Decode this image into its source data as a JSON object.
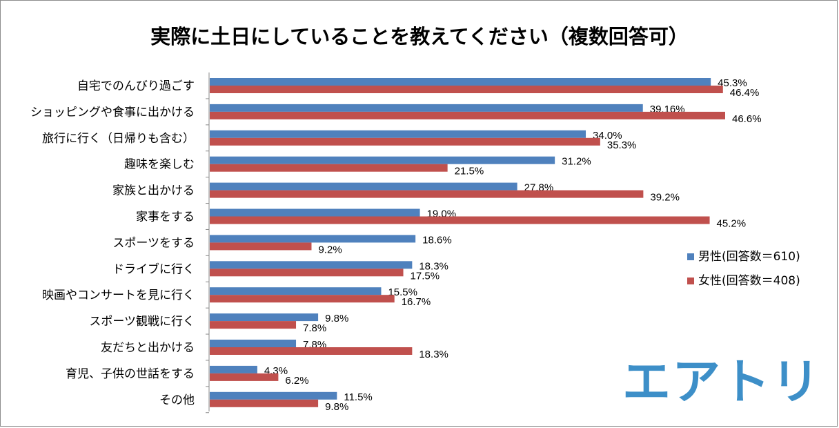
{
  "chart_data": {
    "type": "bar",
    "orientation": "horizontal",
    "title": "実際に土日にしていることを教えてください（複数回答可）",
    "categories": [
      "自宅でのんびり過ごす",
      "ショッピングや食事に出かける",
      "旅行に行く（日帰りも含む）",
      "趣味を楽しむ",
      "家族と出かける",
      "家事をする",
      "スポーツをする",
      "ドライブに行く",
      "映画やコンサートを見に行く",
      "スポーツ観戦に行く",
      "友だちと出かける",
      "育児、子供の世話をする",
      "その他"
    ],
    "series": [
      {
        "name": "男性(回答数＝610)",
        "color": "#4f81bd",
        "values": [
          45.3,
          39.16,
          34.0,
          31.2,
          27.8,
          19.0,
          18.6,
          18.3,
          15.5,
          9.8,
          7.8,
          4.3,
          11.5
        ],
        "labels": [
          "45.3%",
          "39.16%",
          "34.0%",
          "31.2%",
          "27.8%",
          "19.0%",
          "18.6%",
          "18.3%",
          "15.5%",
          "9.8%",
          "7.8%",
          "4.3%",
          "11.5%"
        ]
      },
      {
        "name": "女性(回答数＝408)",
        "color": "#c0504d",
        "values": [
          46.4,
          46.6,
          35.3,
          21.5,
          39.2,
          45.2,
          9.2,
          17.5,
          16.7,
          7.8,
          18.3,
          6.2,
          9.8
        ],
        "labels": [
          "46.4%",
          "46.6%",
          "35.3%",
          "21.5%",
          "39.2%",
          "45.2%",
          "9.2%",
          "17.5%",
          "16.7%",
          "7.8%",
          "18.3%",
          "6.2%",
          "9.8%"
        ]
      }
    ],
    "xlim": [
      0,
      50
    ],
    "grid": false,
    "legend_position": "right"
  },
  "logo": {
    "text": "エアトリ",
    "color": "#3d8fc8"
  }
}
